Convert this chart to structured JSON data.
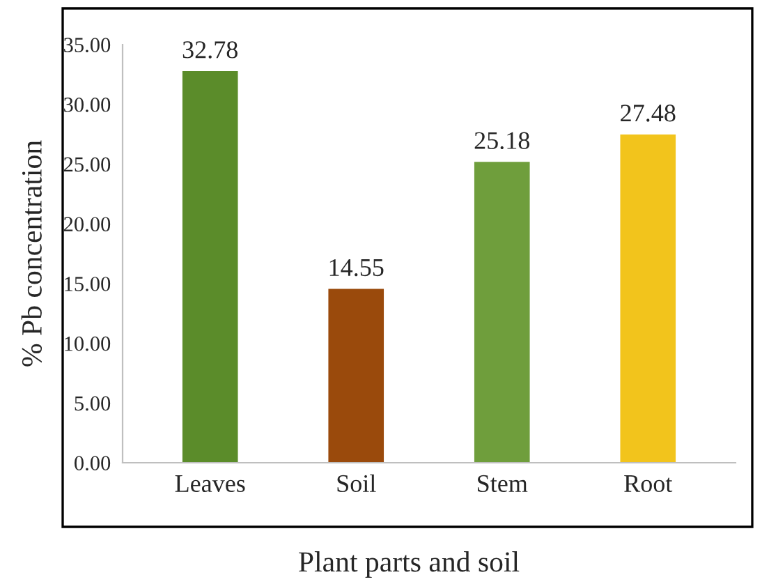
{
  "chart_data": {
    "type": "bar",
    "xlabel": "Plant parts and soil",
    "ylabel": "% Pb concentration",
    "categories": [
      "Leaves",
      "Soil",
      "Stem",
      "Root"
    ],
    "values": [
      32.78,
      14.55,
      25.18,
      27.48
    ],
    "colors": [
      "#5b8c2a",
      "#9a4a0c",
      "#6f9e3c",
      "#f2c41c"
    ],
    "ylim": [
      0,
      35
    ],
    "yticks": [
      {
        "value": 0,
        "label": "0.00"
      },
      {
        "value": 5,
        "label": "5.00"
      },
      {
        "value": 10,
        "label": "10.00"
      },
      {
        "value": 15,
        "label": "15.00"
      },
      {
        "value": 20,
        "label": "20.00"
      },
      {
        "value": 25,
        "label": "25.00"
      },
      {
        "value": 30,
        "label": "30.00"
      },
      {
        "value": 35,
        "label": "35.00"
      }
    ],
    "data_labels": true,
    "grid": false,
    "legend": false
  }
}
